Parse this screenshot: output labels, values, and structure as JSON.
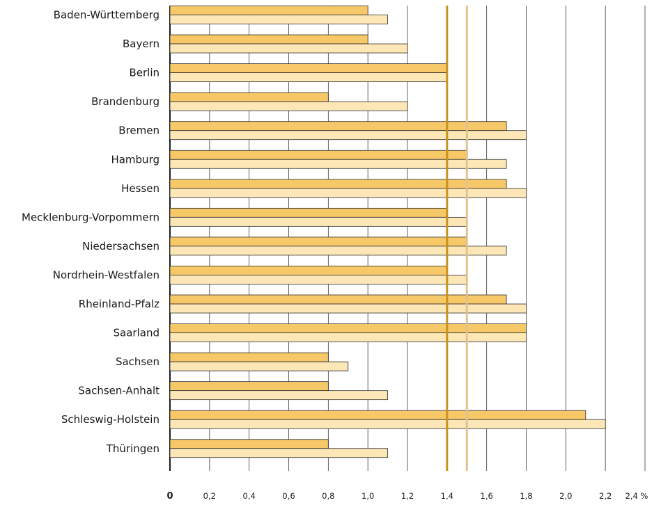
{
  "chart_data": {
    "type": "bar",
    "orientation": "horizontal",
    "categories": [
      "Baden-Württemberg",
      "Bayern",
      "Berlin",
      "Brandenburg",
      "Bremen",
      "Hamburg",
      "Hessen",
      "Mecklenburg-Vorpommern",
      "Niedersachsen",
      "Nordrhein-Westfalen",
      "Rheinland-Pfalz",
      "Saarland",
      "Sachsen",
      "Sachsen-Anhalt",
      "Schleswig-Holstein",
      "Thüringen"
    ],
    "series": [
      {
        "values": [
          1.0,
          1.0,
          1.4,
          0.8,
          1.7,
          1.5,
          1.7,
          1.4,
          1.5,
          1.4,
          1.7,
          1.8,
          0.8,
          0.8,
          2.1,
          0.8
        ],
        "color": "#f7c868"
      },
      {
        "values": [
          1.1,
          1.2,
          1.4,
          1.2,
          1.8,
          1.7,
          1.8,
          1.5,
          1.7,
          1.5,
          1.8,
          1.8,
          0.9,
          1.1,
          2.2,
          1.1
        ],
        "color": "#fde7b6"
      }
    ],
    "reference_lines": [
      {
        "value": 1.4,
        "color": "#c9921f"
      },
      {
        "value": 1.5,
        "color": "#dfc290"
      }
    ],
    "xlim": [
      0,
      2.4
    ],
    "xticks": [
      "0",
      "0,2",
      "0,4",
      "0,6",
      "0,8",
      "1,0",
      "1,2",
      "1,4",
      "1,6",
      "1,8",
      "2,0",
      "2,2",
      "2,4 %"
    ],
    "grid": true,
    "grid_axis": "x",
    "legend": "none",
    "title": "",
    "xlabel": "",
    "ylabel": ""
  }
}
